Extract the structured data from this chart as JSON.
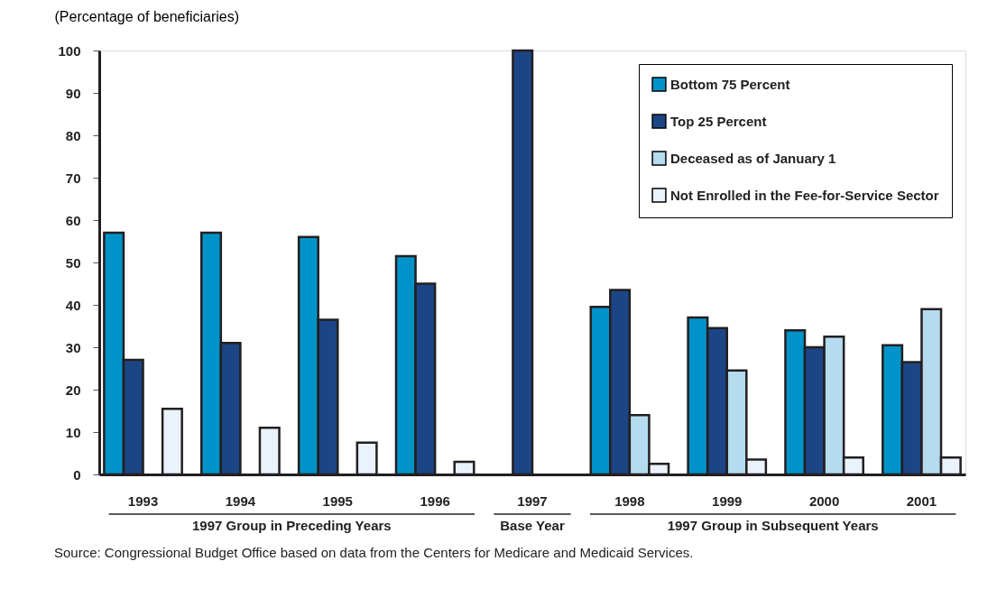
{
  "chart_data": {
    "type": "bar",
    "ylabel": "(Percentage of beneficiaries)",
    "categories": [
      "1993",
      "1994",
      "1995",
      "1996",
      "1997",
      "1998",
      "1999",
      "2000",
      "2001"
    ],
    "series": [
      {
        "name": "Bottom 75 Percent",
        "color": "#0093c9",
        "values": [
          57,
          57,
          56,
          51.5,
          null,
          39.5,
          37,
          34,
          30.5
        ]
      },
      {
        "name": "Top 25 Percent",
        "color": "#1b4585",
        "values": [
          27,
          31,
          36.5,
          45,
          100,
          43.5,
          34.5,
          30,
          26.5
        ]
      },
      {
        "name": "Deceased as of January 1",
        "color": "#b5dbef",
        "values": [
          null,
          null,
          null,
          null,
          null,
          14,
          24.5,
          32.5,
          39
        ]
      },
      {
        "name": "Not Enrolled in the Fee-for-Service Sector",
        "color": "#eaf2fb",
        "values": [
          15.5,
          11,
          7.5,
          3,
          null,
          2.5,
          3.5,
          4,
          4
        ]
      }
    ],
    "ylim": [
      0,
      100
    ],
    "yticks": [
      0,
      10,
      20,
      30,
      40,
      50,
      60,
      70,
      80,
      90,
      100
    ],
    "grid": false,
    "legend": "top right",
    "annotations": [
      "1997 Group in Preceding Years",
      "Base Year",
      "1997 Group in Subsequent Years",
      "Source:    Congressional Budget Office based on data from the Centers for Medicare and Medicaid Services."
    ]
  }
}
